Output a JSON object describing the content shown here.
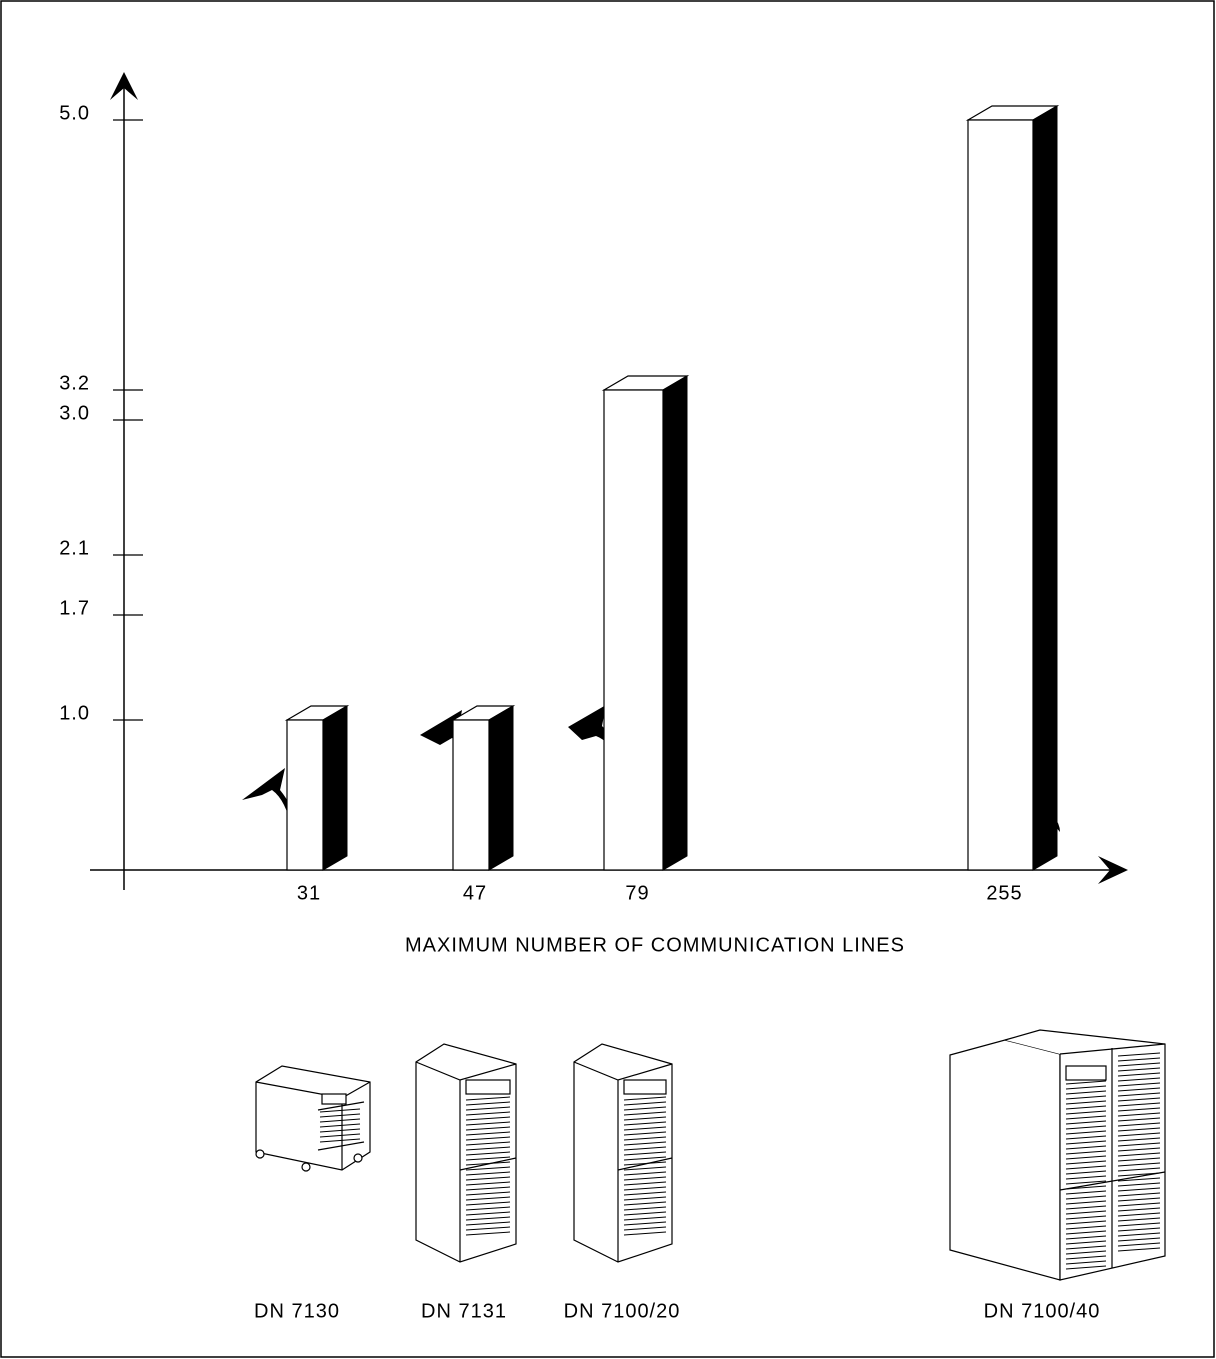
{
  "chart_data": {
    "type": "bar3d",
    "xlabel": "MAXIMUM NUMBER OF COMMUNICATION LINES",
    "categories": [
      "31",
      "47",
      "79",
      "255"
    ],
    "values": [
      1.0,
      1.0,
      3.2,
      5.0
    ],
    "ylim": [
      0,
      5.3
    ],
    "yticks": [
      {
        "value": 1,
        "label": "1.0"
      },
      {
        "value": 1.7,
        "label": "1.7"
      },
      {
        "value": 2.1,
        "label": "2.1"
      },
      {
        "value": 3,
        "label": "3.0"
      },
      {
        "value": 3.2,
        "label": "3.2"
      },
      {
        "value": 5,
        "label": "5.0"
      }
    ],
    "devices": [
      "DN 7130",
      "DN 7131",
      "DN 7100/20",
      "DN 7100/40"
    ]
  }
}
